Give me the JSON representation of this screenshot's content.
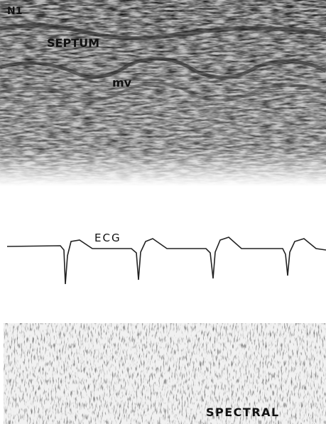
{
  "labels": {
    "panel": "N1",
    "septum": "SEPTUM",
    "mitral_valve": "mv",
    "ecg": "ECG",
    "spectral": "SPECTRAL"
  }
}
